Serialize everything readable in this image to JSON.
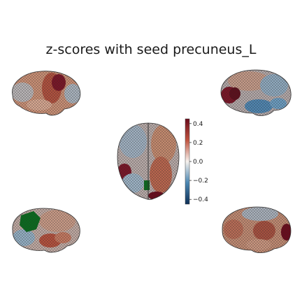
{
  "title": "z-scores with seed precuneus_L",
  "colorbar": {
    "ticks": [
      "0.4",
      "0.2",
      "0.0",
      "−0.2",
      "−0.4"
    ],
    "range": [
      -0.45,
      0.45
    ],
    "colors": {
      "max": "#6b0b1c",
      "high": "#c0543f",
      "mid": "#f7f2ee",
      "low": "#4c87b2",
      "min": "#0d2f57"
    }
  },
  "views": [
    {
      "name": "lateral-left",
      "base": "#c98f75"
    },
    {
      "name": "medial-right",
      "base": "#a9a8aa"
    },
    {
      "name": "dorsal",
      "base": "#b9a6a0"
    },
    {
      "name": "medial-left",
      "base": "#b8a8a6"
    },
    {
      "name": "lateral-right",
      "base": "#c08a72"
    }
  ],
  "seed_color": "#0a6b1e"
}
